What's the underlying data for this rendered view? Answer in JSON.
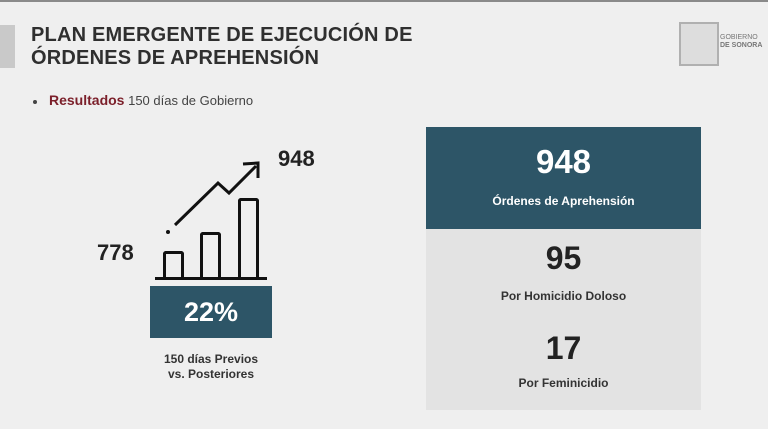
{
  "slide": {
    "title_line1": "PLAN EMERGENTE DE EJECUCIÓN DE",
    "title_line2": "ÓRDENES DE APREHENSIÓN",
    "bullet_label": "Resultados",
    "bullet_text": "150 días de Gobierno",
    "logo_text_line1": "GOBIERNO",
    "logo_text_line2": "DE SONORA"
  },
  "growth": {
    "before_value": "778",
    "after_value": "948",
    "percent": "22%",
    "caption_line1": "150 días Previos",
    "caption_line2": "vs. Posteriores",
    "icon": "bar-chart-growth-arrow-icon"
  },
  "summary": {
    "total_value": "948",
    "total_label": "Órdenes de Aprehensión",
    "items": [
      {
        "value": "95",
        "label": "Por Homicidio Doloso"
      },
      {
        "value": "17",
        "label": "Por Feminicidio"
      }
    ]
  },
  "colors": {
    "teal": "#2d5567",
    "maroon": "#7b1f2a",
    "panel_grey": "#e3e3e3",
    "background": "#efefef"
  }
}
